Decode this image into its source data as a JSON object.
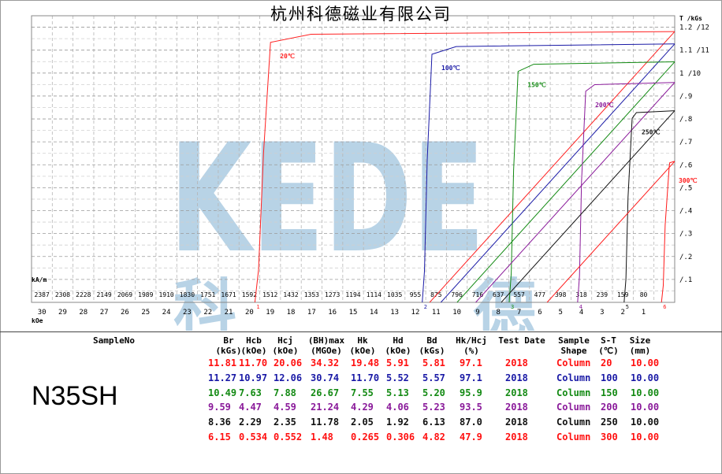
{
  "company_title": "杭州科德磁业有限公司",
  "watermark": {
    "brand": "KEDE",
    "chars": "科德",
    "color": "#b8d3e6"
  },
  "chart_data": {
    "type": "line",
    "title": "杭州科德磁业有限公司",
    "x_axis": {
      "unit_primary": "kOe",
      "unit_secondary": "kA/m",
      "range": [
        31,
        0
      ],
      "ticks_koe": [
        30,
        29,
        28,
        27,
        26,
        25,
        24,
        23,
        22,
        21,
        20,
        19,
        18,
        17,
        16,
        15,
        14,
        13,
        12,
        11,
        10,
        9,
        8,
        7,
        6,
        5,
        4,
        3,
        2,
        1
      ],
      "ticks_kam": [
        "2387",
        "2308",
        "2228",
        "2149",
        "2069",
        "1989",
        "1910",
        "1830",
        "1751",
        "1671",
        "1592",
        "1512",
        "1432",
        "1353",
        "1273",
        "1194",
        "1114",
        "1035",
        "955",
        "875",
        "796",
        "716",
        "637",
        "557",
        "477",
        "398",
        "318",
        "239",
        "159",
        "80"
      ]
    },
    "y_axis": {
      "unit": "T /kGs",
      "range": [
        0,
        1.25
      ],
      "ticks": [
        "/.1",
        "/.2",
        "/.3",
        "/.4",
        "/.5",
        "/.6",
        "/.7",
        "/.8",
        "/.9",
        "1 /10",
        "1.1 /11",
        "1.2 /12"
      ]
    },
    "grid": true,
    "series": [
      {
        "name": "20℃",
        "color": "#ff2020",
        "marker": "1",
        "br": 1.181,
        "hcj": 20.06,
        "hk": 19.48
      },
      {
        "name": "100℃",
        "color": "#1a1aa6",
        "marker": "2",
        "br": 1.127,
        "hcj": 12.06,
        "hk": 11.7
      },
      {
        "name": "150℃",
        "color": "#138a13",
        "marker": "3",
        "br": 1.049,
        "hcj": 7.88,
        "hk": 7.55
      },
      {
        "name": "200℃",
        "color": "#8a1a9a",
        "marker": "4",
        "br": 0.959,
        "hcj": 4.59,
        "hk": 4.29
      },
      {
        "name": "250℃",
        "color": "#111111",
        "marker": "5",
        "br": 0.836,
        "hcj": 2.35,
        "hk": 2.05
      },
      {
        "name": "300℃",
        "color": "#ff1a1a",
        "marker": "6",
        "br": 0.615,
        "hcj": 0.552,
        "hk": 0.265
      }
    ]
  },
  "table": {
    "sample_no_label": "SampleNo",
    "sample_no": "N35SH",
    "headers": [
      [
        "Br",
        "(kGs)"
      ],
      [
        "Hcb",
        "(kOe)"
      ],
      [
        "Hcj",
        "(kOe)"
      ],
      [
        "(BH)max",
        "(MGOe)"
      ],
      [
        "Hk",
        "(kOe)"
      ],
      [
        "Hd",
        "(kOe)"
      ],
      [
        "Bd",
        "(kGs)"
      ],
      [
        "Hk/Hcj",
        "(%)"
      ],
      [
        "Test Date",
        ""
      ],
      [
        "Sample",
        "Shape"
      ],
      [
        "S-T",
        "(℃)"
      ],
      [
        "Size",
        "(mm)"
      ]
    ],
    "rows": [
      {
        "color": "#ff1010",
        "cells": [
          "11.81",
          "11.70",
          "20.06",
          "34.32",
          "19.48",
          "5.91",
          "5.81",
          "97.1",
          "2018",
          "Column",
          "20",
          "10.00"
        ]
      },
      {
        "color": "#1a1aa6",
        "cells": [
          "11.27",
          "10.97",
          "12.06",
          "30.74",
          "11.70",
          "5.52",
          "5.57",
          "97.1",
          "2018",
          "Column",
          "100",
          "10.00"
        ]
      },
      {
        "color": "#138a13",
        "cells": [
          "10.49",
          "7.63",
          "7.88",
          "26.67",
          "7.55",
          "5.13",
          "5.20",
          "95.9",
          "2018",
          "Column",
          "150",
          "10.00"
        ]
      },
      {
        "color": "#8a1a9a",
        "cells": [
          "9.59",
          "4.47",
          "4.59",
          "21.24",
          "4.29",
          "4.06",
          "5.23",
          "93.5",
          "2018",
          "Column",
          "200",
          "10.00"
        ]
      },
      {
        "color": "#111111",
        "cells": [
          "8.36",
          "2.29",
          "2.35",
          "11.78",
          "2.05",
          "1.92",
          "6.13",
          "87.0",
          "2018",
          "Column",
          "250",
          "10.00"
        ]
      },
      {
        "color": "#ff1010",
        "cells": [
          "6.15",
          "0.534",
          "0.552",
          "1.48",
          "0.265",
          "0.306",
          "4.82",
          "47.9",
          "2018",
          "Column",
          "300",
          "10.00"
        ]
      }
    ]
  }
}
